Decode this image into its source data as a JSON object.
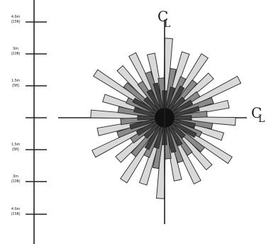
{
  "scale": {
    "ticks": [
      {
        "metric": "4.6m",
        "imperial": "(15ft)"
      },
      {
        "metric": "3m",
        "imperial": "(10ft)"
      },
      {
        "metric": "1.5m",
        "imperial": "(5ft)"
      },
      {
        "metric": "",
        "imperial": ""
      },
      {
        "metric": "1.5m",
        "imperial": "(5ft)"
      },
      {
        "metric": "3m",
        "imperial": "(10ft)"
      },
      {
        "metric": "4.6m",
        "imperial": "(15ft)"
      }
    ]
  },
  "centerline": {
    "symbol": "C",
    "symbol_alt": "L"
  },
  "colors": {
    "ink": "#222222",
    "center": "#111111",
    "outer_petal": "#d9d9d9",
    "middle_petal": "#8a8a8a",
    "inner_petal": "#404040"
  },
  "petal_ring": {
    "outer_count": 24,
    "middle_count": 24,
    "inner_count": 24
  }
}
